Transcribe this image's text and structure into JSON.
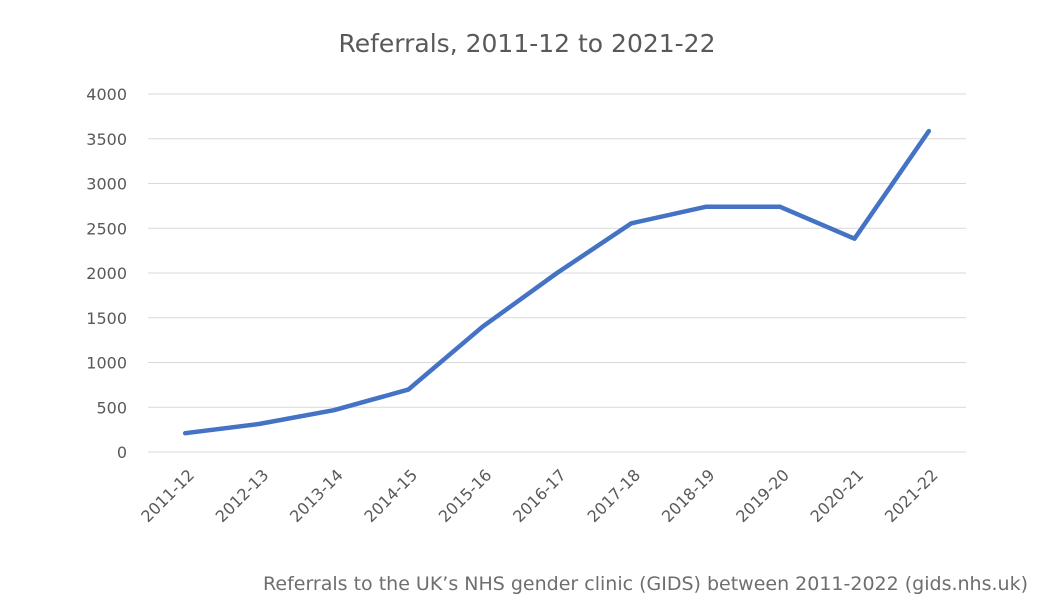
{
  "chart_data": {
    "type": "line",
    "title": "Referrals, 2011-12 to 2021-22",
    "xlabel": "",
    "ylabel": "",
    "categories": [
      "2011-12",
      "2012-13",
      "2013-14",
      "2014-15",
      "2015-16",
      "2016-17",
      "2017-18",
      "2018-19",
      "2019-20",
      "2020-21",
      "2021-22"
    ],
    "series": [
      {
        "name": "Referrals",
        "values": [
          210,
          314,
          467,
          697,
          1400,
          2000,
          2555,
          2740,
          2740,
          2383,
          3585
        ]
      }
    ],
    "ylim": [
      0,
      4000
    ],
    "yticks": [
      0,
      500,
      1000,
      1500,
      2000,
      2500,
      3000,
      3500,
      4000
    ],
    "ytick_labels": [
      "0",
      "500",
      "1000",
      "1500",
      "2000",
      "2500",
      "3000",
      "3500",
      "4000"
    ],
    "grid": true,
    "legend": "none",
    "colors": {
      "series": "#4472c4",
      "grid": "#d9d9d9",
      "text": "#595959"
    }
  },
  "caption": "Referrals to the UK’s NHS gender clinic (GIDS) between 2011-2022 (gids.nhs.uk)"
}
